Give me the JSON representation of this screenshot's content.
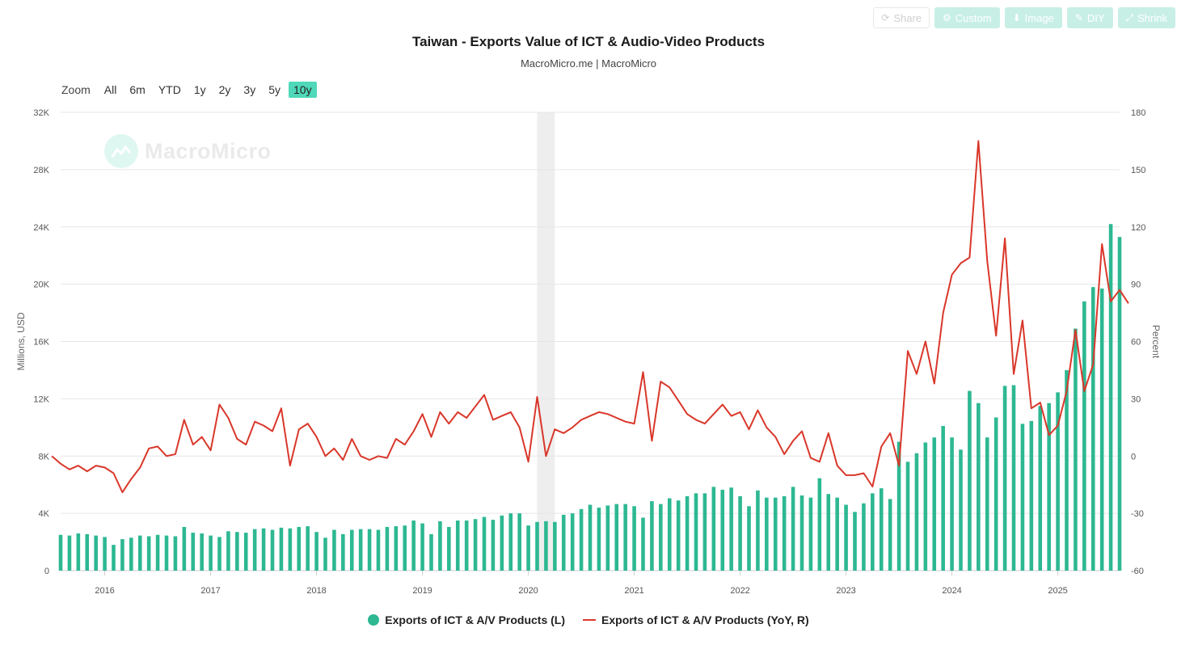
{
  "toolbar": [
    {
      "label": "Share",
      "icon": "share-icon",
      "style": "outline"
    },
    {
      "label": "Custom",
      "icon": "gear-icon",
      "style": "filled"
    },
    {
      "label": "Image",
      "icon": "download-icon",
      "style": "filled"
    },
    {
      "label": "DIY",
      "icon": "pencil-icon",
      "style": "filled"
    },
    {
      "label": "Shrink",
      "icon": "shrink-icon",
      "style": "filled"
    }
  ],
  "title": "Taiwan - Exports Value of ICT & Audio-Video Products",
  "subtitle": "MacroMicro.me | MacroMicro",
  "zoom": {
    "label": "Zoom",
    "buttons": [
      "All",
      "6m",
      "YTD",
      "1y",
      "2y",
      "3y",
      "5y",
      "10y"
    ],
    "active": "10y"
  },
  "watermark": "MacroMicro",
  "colors": {
    "bars": "#2db892",
    "line": "#d9372a",
    "accent": "#4fd8b9",
    "recession_band": "#eeeeee"
  },
  "chart_data": {
    "type": "bar+line",
    "title": "Taiwan - Exports Value of ICT & Audio-Video Products",
    "x_start": "2015-08",
    "x_end": "2025-08",
    "x_tick_labels": [
      "2016",
      "2017",
      "2018",
      "2019",
      "2020",
      "2021",
      "2022",
      "2023",
      "2024",
      "2025"
    ],
    "left_axis": {
      "label": "Millions, USD",
      "ylim": [
        0,
        32000
      ],
      "tick_labels": [
        "0",
        "4K",
        "8K",
        "12K",
        "16K",
        "20K",
        "24K",
        "28K",
        "32K"
      ]
    },
    "right_axis": {
      "label": "Percent",
      "ylim": [
        -60,
        180
      ],
      "tick_labels": [
        "-60",
        "-30",
        "0",
        "30",
        "60",
        "90",
        "120",
        "150",
        "180"
      ]
    },
    "grid": true,
    "shaded_period": [
      "2020-02",
      "2020-04"
    ],
    "series": [
      {
        "name": "Exports of ICT & A/V Products (L)",
        "type": "bar",
        "axis": "left",
        "start": "2015-08",
        "values": [
          2500,
          2450,
          2600,
          2550,
          2450,
          2350,
          1800,
          2200,
          2300,
          2450,
          2400,
          2500,
          2450,
          2400,
          3050,
          2650,
          2600,
          2450,
          2350,
          2750,
          2700,
          2650,
          2900,
          2950,
          2850,
          3000,
          2950,
          3050,
          3100,
          2700,
          2300,
          2850,
          2550,
          2850,
          2900,
          2900,
          2850,
          3050,
          3100,
          3150,
          3500,
          3300,
          2550,
          3450,
          3050,
          3500,
          3500,
          3600,
          3750,
          3550,
          3850,
          4000,
          4000,
          3150,
          3400,
          3450,
          3400,
          3900,
          4000,
          4300,
          4600,
          4400,
          4550,
          4650,
          4650,
          4500,
          3700,
          4850,
          4650,
          5050,
          4900,
          5200,
          5400,
          5400,
          5850,
          5650,
          5800,
          5200,
          4500,
          5600,
          5100,
          5100,
          5200,
          5850,
          5250,
          5100,
          6450,
          5350,
          5100,
          4600,
          4100,
          4700,
          5400,
          5750,
          5000,
          9000,
          7600,
          8200,
          8950,
          9300,
          10100,
          9300,
          8450,
          12550,
          11700,
          9300,
          10700,
          12900,
          12950,
          10250,
          10450,
          11500,
          11700,
          12450,
          14000,
          16900,
          18800,
          19800,
          19700,
          24200,
          23300
        ]
      },
      {
        "name": "Exports of ICT & A/V Products (YoY, R)",
        "type": "line",
        "axis": "right",
        "start": "2015-07",
        "values": [
          0,
          -4,
          -7,
          -5,
          -8,
          -5,
          -6,
          -9,
          -19,
          -12,
          -6,
          4,
          5,
          0,
          1,
          19,
          6,
          10,
          3,
          27,
          20,
          9,
          6,
          18,
          16,
          13,
          25,
          -5,
          14,
          17,
          10,
          0,
          4,
          -2,
          9,
          0,
          -2,
          0,
          -1,
          9,
          6,
          13,
          22,
          10,
          23,
          17,
          23,
          20,
          26,
          32,
          19,
          21,
          23,
          15,
          -3,
          31,
          0,
          14,
          12,
          15,
          19,
          21,
          23,
          22,
          20,
          18,
          17,
          44,
          8,
          39,
          36,
          29,
          22,
          19,
          17,
          22,
          27,
          21,
          23,
          14,
          24,
          15,
          10,
          1,
          8,
          13,
          -1,
          -3,
          12,
          -5,
          -10,
          -10,
          -9,
          -16,
          5,
          12,
          -5,
          55,
          43,
          60,
          38,
          75,
          95,
          101,
          104,
          165,
          102,
          63,
          114,
          43,
          71,
          25,
          28,
          11,
          16,
          34,
          66,
          34,
          48,
          111,
          81,
          87,
          80
        ]
      }
    ]
  },
  "legend": [
    "Exports of ICT & A/V Products (L)",
    "Exports of ICT & A/V Products (YoY, R)"
  ]
}
